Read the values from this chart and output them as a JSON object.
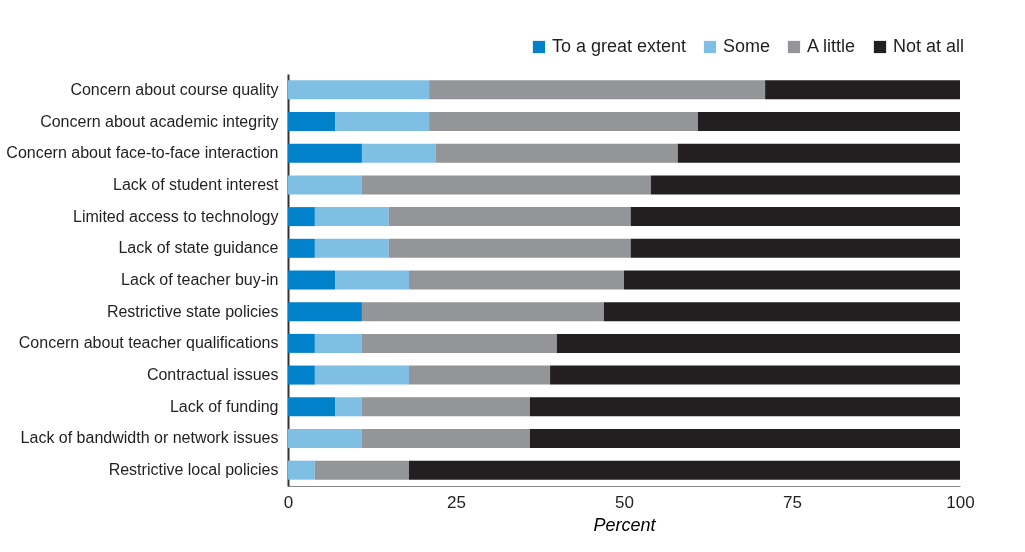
{
  "chart_data": {
    "type": "bar",
    "orientation": "horizontal",
    "stacked": true,
    "categories": [
      "Concern about course quality",
      "Concern about academic integrity",
      "Concern about face-to-face interaction",
      "Lack of student interest",
      "Limited access to technology",
      "Lack of state guidance",
      "Lack of teacher buy-in",
      "Restrictive state policies",
      "Concern about teacher qualifications",
      "Contractual issues",
      "Lack of funding",
      "Lack of bandwidth or network issues",
      "Restrictive local policies"
    ],
    "series": [
      {
        "name": "To a great extent",
        "color": "#0081c9",
        "values": [
          0,
          7,
          11,
          0,
          4,
          4,
          7,
          11,
          4,
          4,
          7,
          0,
          0
        ]
      },
      {
        "name": "Some",
        "color": "#80bfe4",
        "values": [
          21,
          14,
          11,
          11,
          11,
          11,
          11,
          0,
          7,
          14,
          4,
          11,
          4
        ]
      },
      {
        "name": "A little",
        "color": "#939598",
        "values": [
          50,
          40,
          36,
          43,
          36,
          36,
          32,
          36,
          29,
          21,
          25,
          25,
          14
        ]
      },
      {
        "name": "Not at all",
        "color": "#231f20",
        "values": [
          29,
          39,
          42,
          46,
          49,
          49,
          50,
          53,
          60,
          61,
          64,
          64,
          82
        ]
      }
    ],
    "xlabel": "Percent",
    "xlim": [
      0,
      100
    ],
    "xticks": [
      0,
      25,
      50,
      75,
      100
    ],
    "legend": "top right",
    "grid": false
  }
}
